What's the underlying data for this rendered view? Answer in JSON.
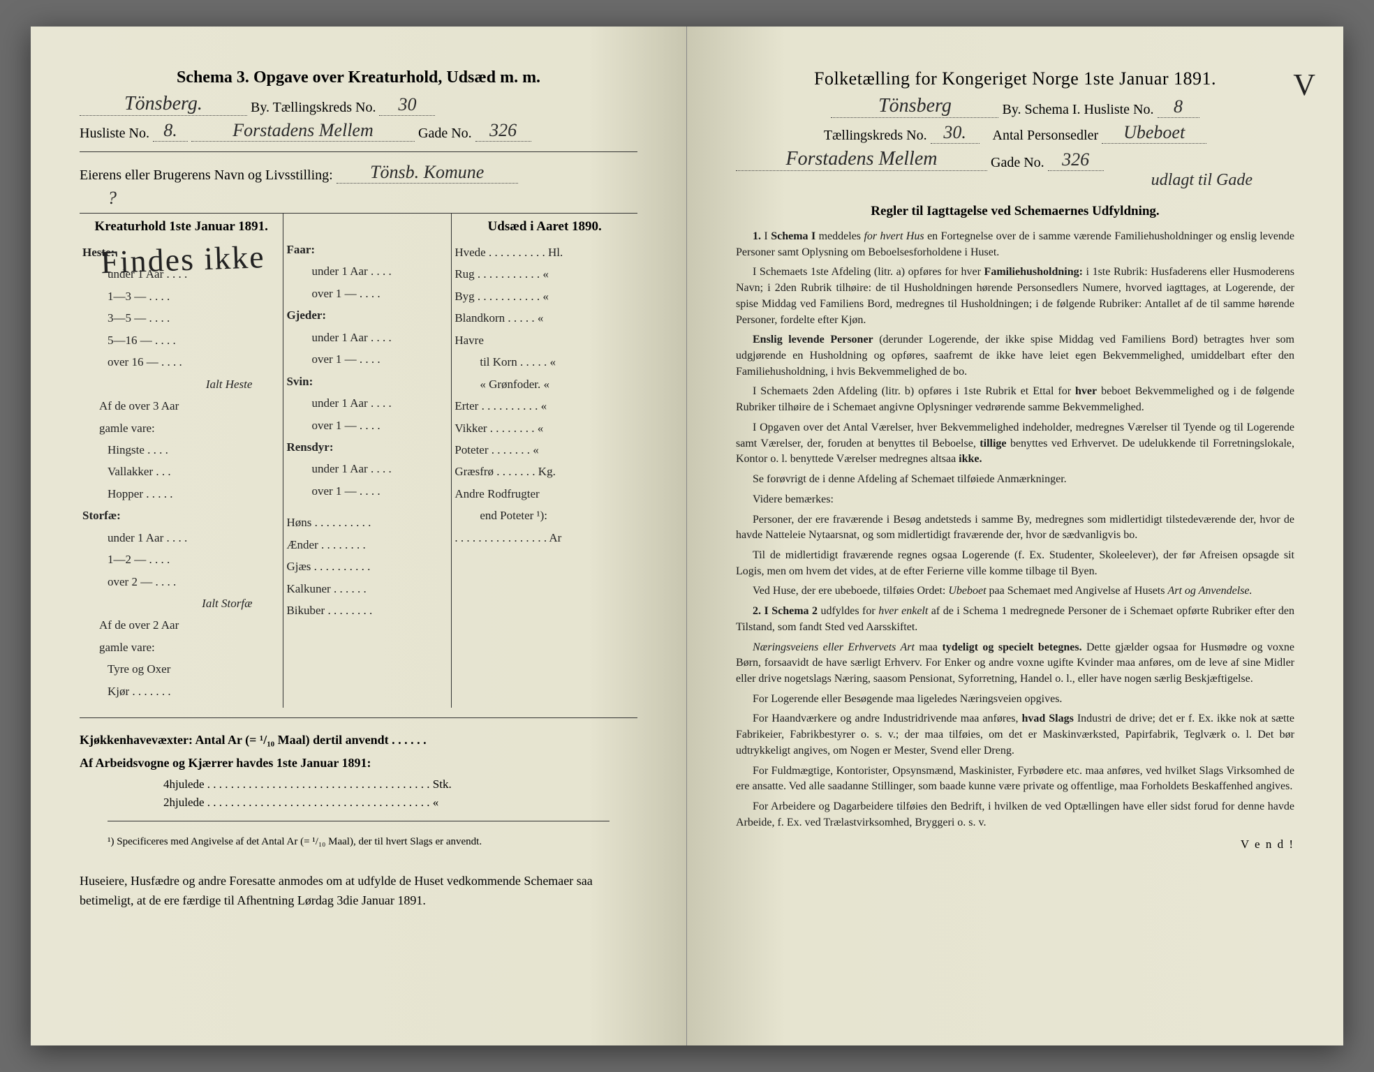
{
  "left": {
    "title_prefix": "Schema 3.",
    "title_main": "Opgave over Kreaturhold, Udsæd m. m.",
    "city_hw": "Tönsberg.",
    "city_label_suffix": "By.  Tællingskreds No.",
    "kreds_no_hw": "30",
    "husliste_label": "Husliste No.",
    "husliste_no_hw": "8.",
    "gade_hw": "Forstadens Mellem",
    "gade_label": "Gade No.",
    "gade_no_hw": "326",
    "eier_label": "Eierens eller Brugerens Navn og Livsstilling:",
    "eier_hw": "Tönsb. Komune",
    "col1_title": "Kreaturhold 1ste Januar 1891.",
    "col2_title": "Udsæd i Aaret 1890.",
    "overlay_hw": "Findes ikke",
    "col1": {
      "heste": "Heste:",
      "heste_items": [
        "under 1 Aar . . . .",
        "1—3   —   . . . .",
        "3—5   —   . . . .",
        "5—16  —   . . . .",
        "over 16 —   . . . ."
      ],
      "ialt_heste": "Ialt Heste",
      "af3aar": "Af de over 3 Aar",
      "gamle": "gamle vare:",
      "gamle_items": [
        "Hingste . . . .",
        "Vallakker . . .",
        "Hopper . . . . ."
      ],
      "storfae": "Storfæ:",
      "storfae_items": [
        "under 1 Aar . . . .",
        "1—2   —   . . . .",
        "over 2   —   . . . ."
      ],
      "ialt_storfae": "Ialt Storfæ",
      "af2aar": "Af de over 2 Aar",
      "gamle2_items": [
        "Tyre og Oxer",
        "Kjør . . . . . . ."
      ]
    },
    "col1b": {
      "faar": "Faar:",
      "faar_items": [
        "under 1 Aar . . . .",
        "over 1   —   . . . ."
      ],
      "gjeder": "Gjeder:",
      "gjeder_items": [
        "under 1 Aar . . . .",
        "over 1   —   . . . ."
      ],
      "svin": "Svin:",
      "svin_items": [
        "under 1 Aar . . . .",
        "over 1   —   . . . ."
      ],
      "rensdyr": "Rensdyr:",
      "rensdyr_items": [
        "under 1 Aar . . . .",
        "over 1   —   . . . ."
      ],
      "other": [
        "Høns . . . . . . . . . .",
        "Ænder . . . . . . . .",
        "Gjæs . . . . . . . . . .",
        "Kalkuner . . . . . .",
        "Bikuber . . . . . . . ."
      ]
    },
    "col2": {
      "items": [
        "Hvede . . . . . . . . . . Hl.",
        "Rug . . . . . . . . . . .  «",
        "Byg . . . . . . . . . . .  «",
        "Blandkorn . . . . .  «",
        "Havre",
        "    til Korn . . . . .  «",
        "    « Grønfoder.  «",
        "Erter . . . . . . . . . .  «",
        "Vikker . . . . . . . .  «",
        "Poteter . . . . . . .  «",
        "Græsfrø . . . . . . . Kg.",
        "Andre Rodfrugter",
        "    end Poteter ¹):",
        ". . . . . . . . . . . . . . . . Ar"
      ]
    },
    "kjokken": "Kjøkkenhavevæxter:  Antal Ar (= ¹/₁₀ Maal) dertil anvendt . . . . . .",
    "arbeid": "Af Arbeidsvogne og Kjærrer havdes 1ste Januar 1891:",
    "arbeid_4": "4hjulede . . . . . . . . . . . . . . . . . . . . . . . . . . . . . . . . . . . . . . Stk.",
    "arbeid_2": "2hjulede . . . . . . . . . . . . . . . . . . . . . . . . . . . . . . . . . . . . . .  «",
    "footnote": "¹) Specificeres med Angivelse af det Antal Ar (= ¹/₁₀ Maal), der til hvert Slags er anvendt.",
    "bottom": "Huseiere, Husfædre og andre Foresatte anmodes om at udfylde de Huset vedkommende Schemaer saa betimeligt, at de ere færdige til Afhentning Lørdag 3die Januar 1891."
  },
  "right": {
    "title": "Folketælling for Kongeriget Norge 1ste Januar 1891.",
    "city_hw": "Tönsberg",
    "city_suffix": "By.  Schema I.  Husliste No.",
    "husliste_hw": "8",
    "checkmark": "V",
    "kreds_label": "Tællingskreds No.",
    "kreds_hw": "30.",
    "antal_label": "Antal Personsedler",
    "antal_hw": "Ubeboet",
    "gade_hw": "Forstadens Mellem",
    "gade_label": "Gade No.",
    "gade_no_hw": "326",
    "gade_extra_hw": "udlagt til Gade",
    "rules_title": "Regler til Iagttagelse ved Schemaernes Udfyldning.",
    "paragraphs": [
      {
        "n": "1.",
        "t": "I <b>Schema I</b> meddeles <i>for hvert Hus</i> en Fortegnelse over de i samme værende Familiehusholdninger og enslig levende Personer samt Oplysning om Beboelsesforholdene i Huset."
      },
      {
        "t": "I Schemaets 1ste Afdeling (litr. a) opføres for hver <b>Familiehusholdning:</b> i 1ste Rubrik: Husfaderens eller Husmoderens Navn; i 2den Rubrik tilhøire: de til Husholdningen hørende Personsedlers Numere, hvorved iagttages, at Logerende, der spise Middag ved Familiens Bord, medregnes til Husholdningen; i de følgende Rubriker: Antallet af de til samme hørende Personer, fordelte efter Kjøn."
      },
      {
        "t": "<b>Enslig levende Personer</b> (derunder Logerende, der ikke spise Middag ved Familiens Bord) betragtes hver som udgjørende en Husholdning og opføres, saafremt de ikke have leiet egen Bekvemmelighed, umiddelbart efter den Familiehusholdning, i hvis Bekvemmelighed de bo."
      },
      {
        "t": "I Schemaets 2den Afdeling (litr. b) opføres i 1ste Rubrik et Ettal for <b>hver</b> beboet Bekvemmelighed og i de følgende Rubriker tilhøire de i Schemaet angivne Oplysninger vedrørende samme Bekvemmelighed."
      },
      {
        "t": "I Opgaven over det Antal Værelser, hver Bekvemmelighed indeholder, medregnes Værelser til Tyende og til Logerende samt Værelser, der, foruden at benyttes til Beboelse, <b>tillige</b> benyttes ved Erhvervet. De udelukkende til Forretningslokale, Kontor o. l. benyttede Værelser medregnes altsaa <b>ikke.</b>"
      },
      {
        "t": "Se forøvrigt de i denne Afdeling af Schemaet tilføiede Anmærkninger."
      },
      {
        "t": "Videre bemærkes:"
      },
      {
        "t": "Personer, der ere fraværende i Besøg andetsteds i samme By, medregnes som midlertidigt tilstedeværende der, hvor de havde Natteleie Nytaarsnat, og som midlertidigt fraværende der, hvor de sædvanligvis bo."
      },
      {
        "t": "Til de midlertidigt fraværende regnes ogsaa Logerende (f. Ex. Studenter, Skoleelever), der før Afreisen opsagde sit Logis, men om hvem det vides, at de efter Ferierne ville komme tilbage til Byen."
      },
      {
        "t": "Ved Huse, der ere ubeboede, tilføies Ordet: <i>Ubeboet</i> paa Schemaet med Angivelse af Husets <i>Art og Anvendelse.</i>"
      },
      {
        "n": "2.",
        "t": "<b>I Schema 2</b> udfyldes for <i>hver enkelt</i> af de i Schema 1 medregnede Personer de i Schemaet opførte Rubriker efter den Tilstand, som fandt Sted ved Aarsskiftet."
      },
      {
        "t": "<i>Næringsveiens eller Erhvervets Art</i> maa <b>tydeligt og specielt betegnes.</b> Dette gjælder ogsaa for Husmødre og voxne Børn, forsaavidt de have særligt Erhverv. For Enker og andre voxne ugifte Kvinder maa anføres, om de leve af sine Midler eller drive nogetslags Næring, saasom Pensionat, Syforretning, Handel o. l., eller have nogen særlig Beskjæftigelse."
      },
      {
        "t": "For Logerende eller Besøgende maa ligeledes Næringsveien opgives."
      },
      {
        "t": "For Haandværkere og andre Industridrivende maa anføres, <b>hvad Slags</b> Industri de drive; det er f. Ex. ikke nok at sætte Fabrikeier, Fabrikbestyrer o. s. v.; der maa tilføies, om det er Maskinværksted, Papirfabrik, Teglværk o. l. Det bør udtrykkeligt angives, om Nogen er Mester, Svend eller Dreng."
      },
      {
        "t": "For Fuldmægtige, Kontorister, Opsynsmænd, Maskinister, Fyrbødere etc. maa anføres, ved hvilket Slags Virksomhed de ere ansatte. Ved alle saadanne Stillinger, som baade kunne være private og offentlige, maa Forholdets Beskaffenhed angives."
      },
      {
        "t": "For Arbeidere og Dagarbeidere tilføies den Bedrift, i hvilken de ved Optællingen have eller sidst forud for denne havde Arbeide, f. Ex. ved Trælastvirksomhed, Bryggeri o. s. v."
      }
    ],
    "vend": "V e n d !"
  },
  "colors": {
    "ink": "#222222",
    "paper": "#e8e6d4"
  }
}
